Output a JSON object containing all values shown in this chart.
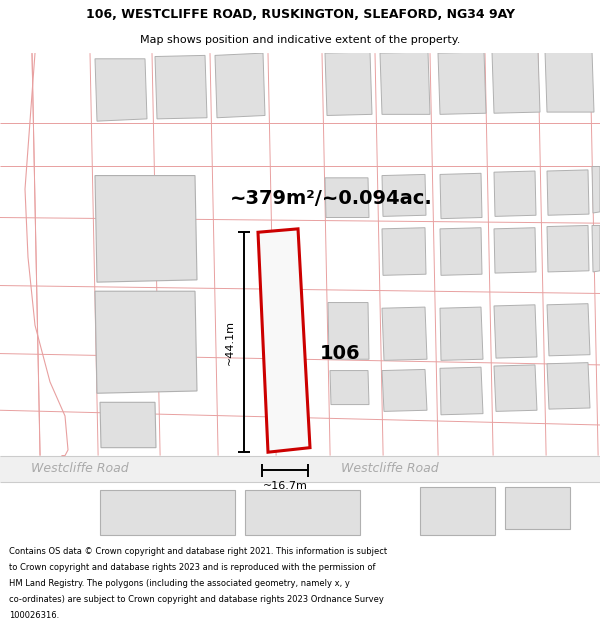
{
  "title_line1": "106, WESTCLIFFE ROAD, RUSKINGTON, SLEAFORD, NG34 9AY",
  "title_line2": "Map shows position and indicative extent of the property.",
  "area_text": "~379m²/~0.094ac.",
  "height_label": "~44.1m",
  "width_label": "~16.7m",
  "number_label": "106",
  "road_label_left": "Westcliffe Road",
  "road_label_right": "Westcliffe Road",
  "footer_lines": [
    "Contains OS data © Crown copyright and database right 2021. This information is subject",
    "to Crown copyright and database rights 2023 and is reproduced with the permission of",
    "HM Land Registry. The polygons (including the associated geometry, namely x, y",
    "co-ordinates) are subject to Crown copyright and database rights 2023 Ordnance Survey",
    "100026316."
  ],
  "map_bg": "#ffffff",
  "parcel_line_color": "#e8a0a0",
  "road_line_color": "#cccccc",
  "building_fill": "#e0e0e0",
  "building_edge": "#b0b0b0",
  "highlight_fill": "#f8f8f8",
  "highlight_edge": "#cc0000",
  "dim_line_color": "#000000",
  "road_bg": "#f0f0f0",
  "road_text_color": "#aaaaaa",
  "road_text_color2": "#bbbbbb",
  "title_fontsize": 9,
  "subtitle_fontsize": 8,
  "area_fontsize": 14,
  "label_fontsize": 14,
  "dim_fontsize": 8,
  "road_fontsize": 9,
  "footer_fontsize": 6
}
